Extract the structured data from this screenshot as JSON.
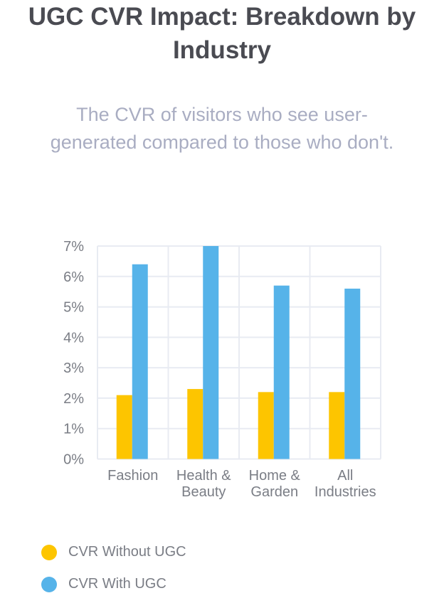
{
  "chart_data": {
    "type": "bar",
    "title": "UGC CVR Impact: Breakdown by Industry",
    "subtitle": "The CVR of visitors who see user-generated compared to those who don't.",
    "categories": [
      [
        "Fashion"
      ],
      [
        "Health &",
        "Beauty"
      ],
      [
        "Home &",
        "Garden"
      ],
      [
        "All",
        "Industries"
      ]
    ],
    "series": [
      {
        "name": "CVR Without UGC",
        "color": "#FDC500",
        "values": [
          2.1,
          2.3,
          2.2,
          2.2
        ]
      },
      {
        "name": "CVR With UGC",
        "color": "#56B3E9",
        "values": [
          6.4,
          7.0,
          5.7,
          5.6
        ]
      }
    ],
    "ylim": [
      0,
      7
    ],
    "yticks": [
      "0%",
      "1%",
      "2%",
      "3%",
      "4%",
      "5%",
      "6%",
      "7%"
    ],
    "grid": true,
    "legend": "bottom-left"
  }
}
